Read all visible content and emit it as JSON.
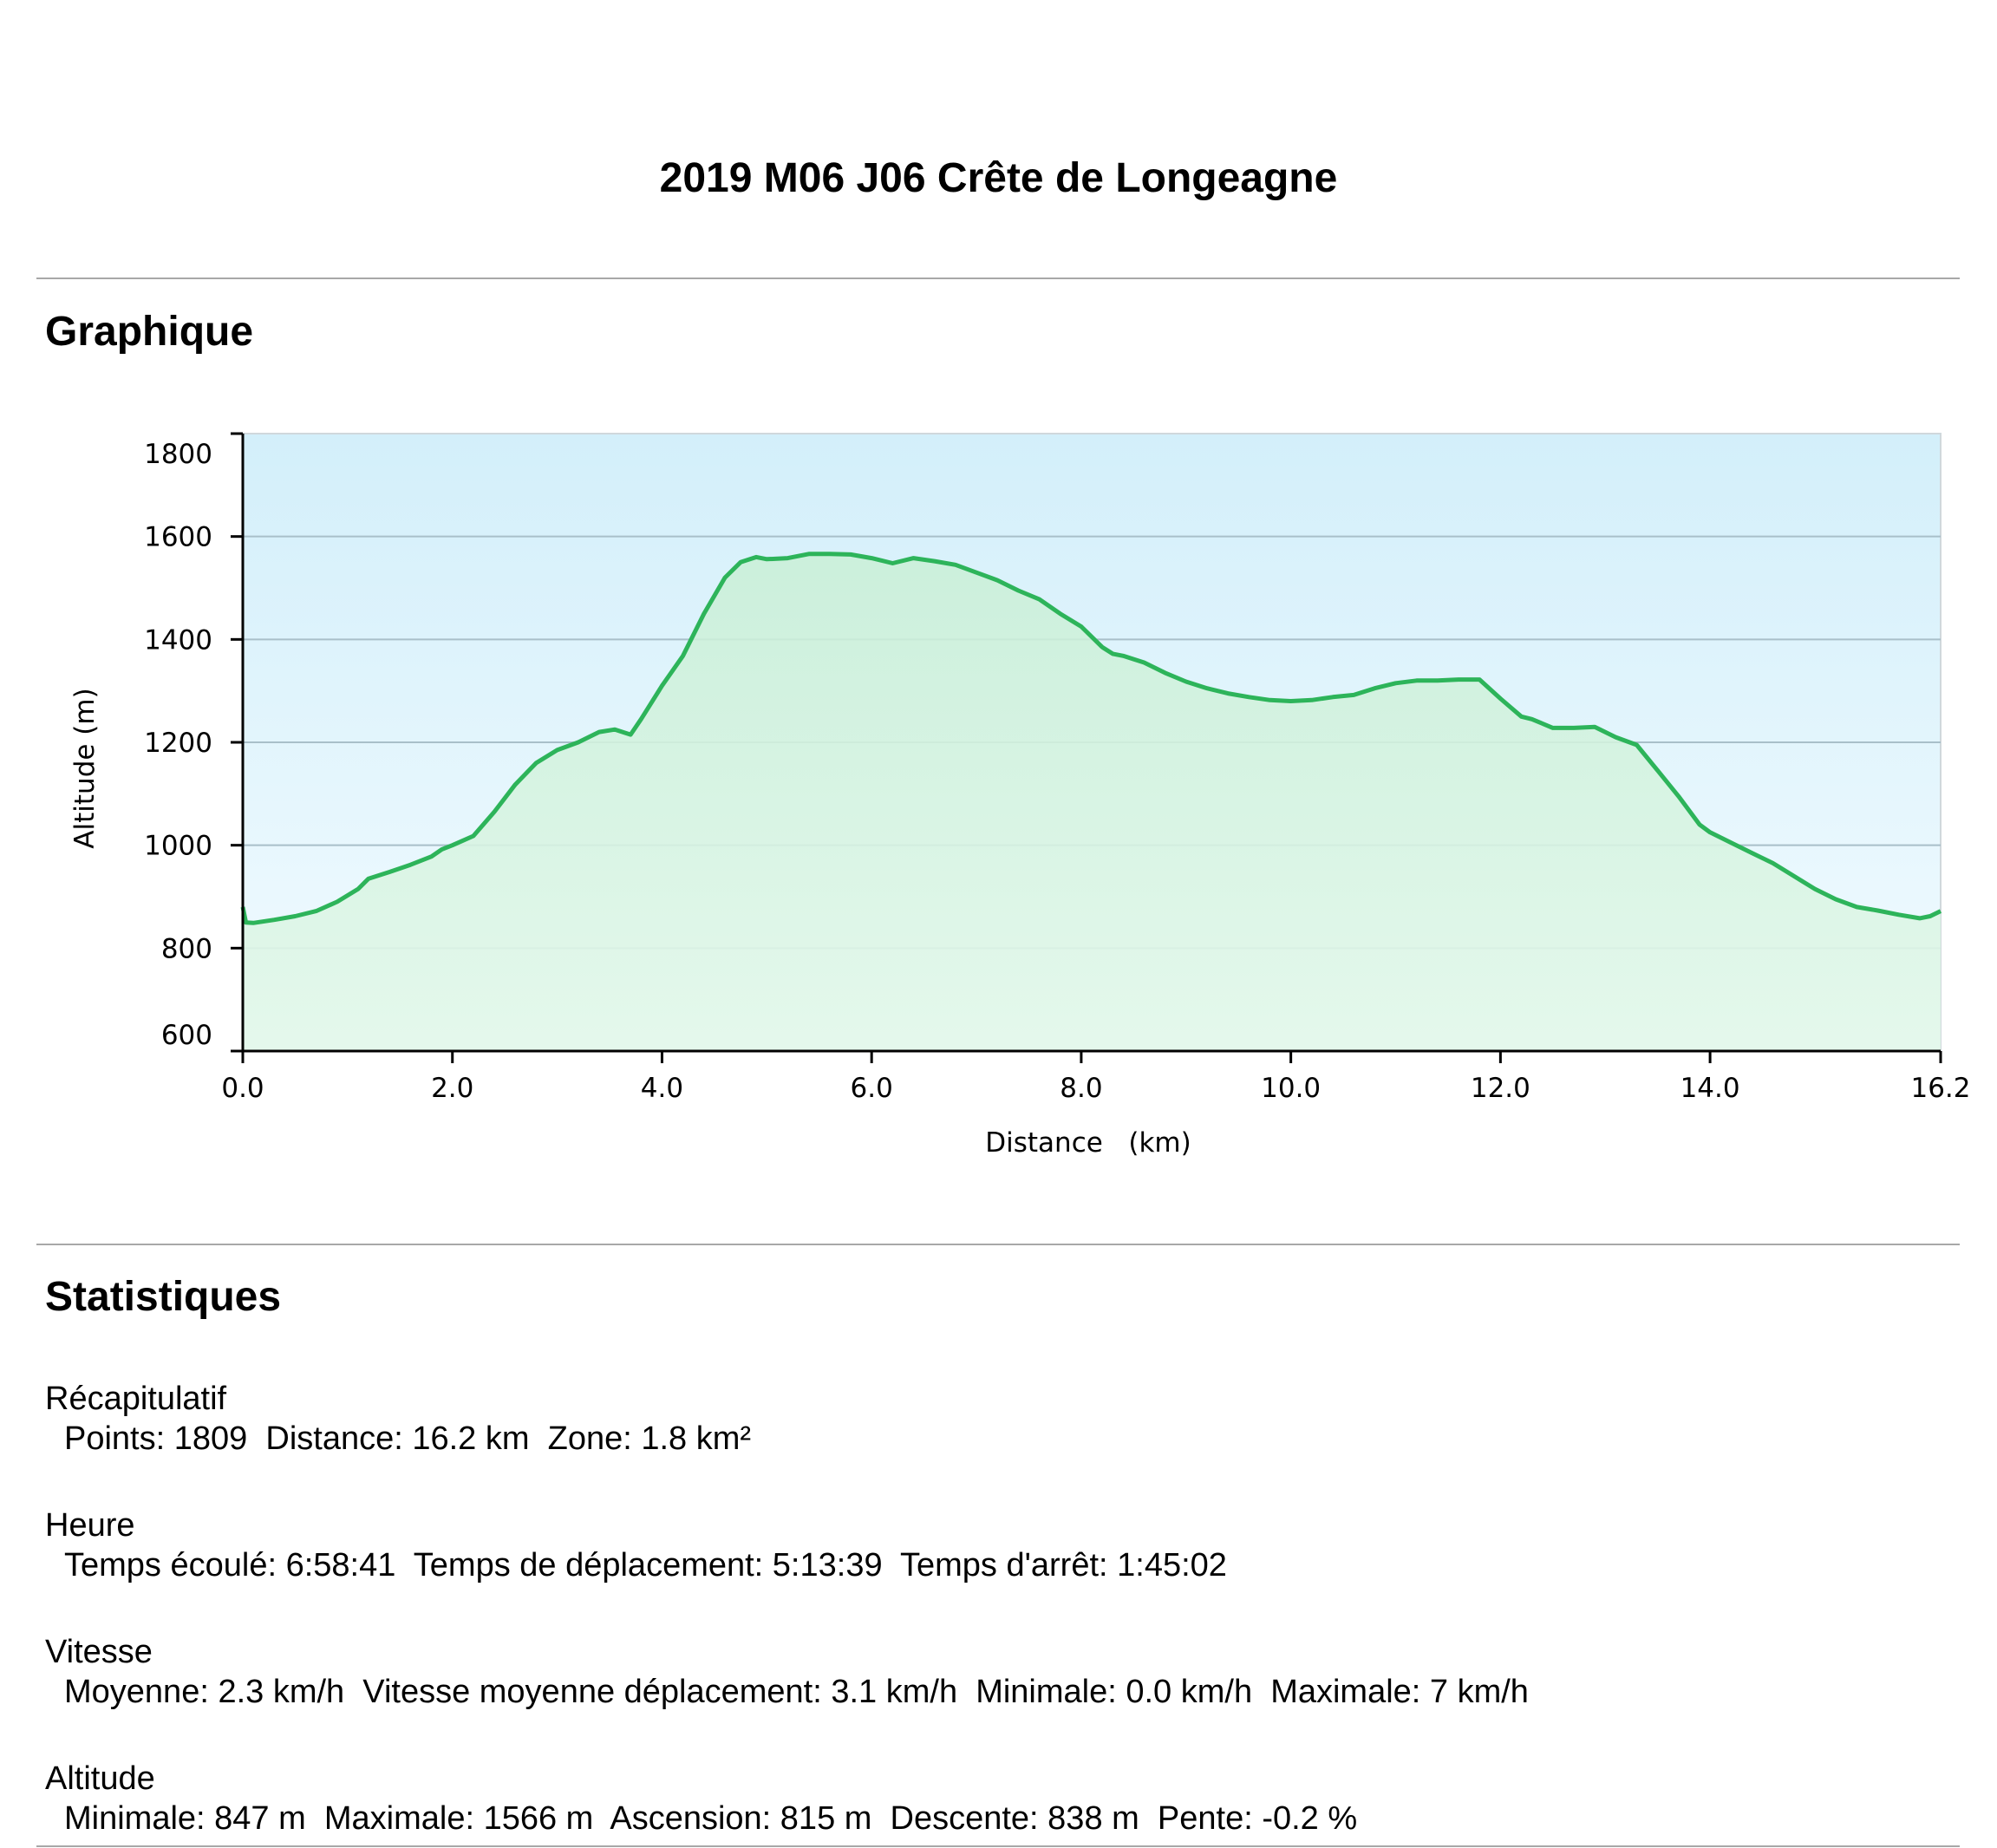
{
  "page": {
    "title": "2019 M06 J06 Crête de Longeagne",
    "section_chart": "Graphique",
    "section_stats": "Statistiques"
  },
  "stats": {
    "summary": {
      "heading": "Récapitulatif",
      "line": "Points: 1809  Distance: 16.2 km  Zone: 1.8 km²"
    },
    "time": {
      "heading": "Heure",
      "line": "Temps écoulé: 6:58:41  Temps de déplacement: 5:13:39  Temps d'arrêt: 1:45:02"
    },
    "speed": {
      "heading": "Vitesse",
      "line": "Moyenne: 2.3 km/h  Vitesse moyenne déplacement: 3.1 km/h  Minimale: 0.0 km/h  Maximale: 7 km/h"
    },
    "altitude": {
      "heading": "Altitude",
      "line": "Minimale: 847 m  Maximale: 1566 m  Ascension: 815 m  Descente: 838 m  Pente: -0.2 %"
    }
  },
  "chart_data": {
    "type": "area",
    "title": "",
    "xlabel": "Distance   (km)",
    "ylabel": "Altitude (m)",
    "xlim": [
      0,
      16.2
    ],
    "ylim": [
      600,
      1800
    ],
    "xticks": [
      "0.0",
      "2.0",
      "4.0",
      "6.0",
      "8.0",
      "10.0",
      "12.0",
      "14.0",
      "16.2"
    ],
    "yticks": [
      "600",
      "800",
      "1000",
      "1200",
      "1400",
      "1600",
      "1800"
    ],
    "grid": true,
    "colors": {
      "line": "#2db45a",
      "fill": "#c9efd6",
      "bg_top": "#d3effa",
      "bg_bottom": "#f2fbff",
      "grid": "#a9bfc9"
    },
    "series": [
      {
        "x": [
          0.0,
          0.03,
          0.1,
          0.3,
          0.5,
          0.7,
          0.9,
          1.1,
          1.2,
          1.4,
          1.6,
          1.8,
          1.9,
          2.0,
          2.2,
          2.4,
          2.6,
          2.8,
          3.0,
          3.2,
          3.4,
          3.55,
          3.7,
          3.8,
          4.0,
          4.2,
          4.4,
          4.6,
          4.75,
          4.9,
          5.0,
          5.2,
          5.4,
          5.6,
          5.8,
          6.0,
          6.2,
          6.4,
          6.6,
          6.8,
          7.0,
          7.2,
          7.4,
          7.6,
          7.8,
          8.0,
          8.2,
          8.3,
          8.4,
          8.6,
          8.8,
          9.0,
          9.2,
          9.4,
          9.6,
          9.8,
          10.0,
          10.2,
          10.4,
          10.6,
          10.8,
          11.0,
          11.2,
          11.4,
          11.6,
          11.8,
          12.0,
          12.2,
          12.3,
          12.5,
          12.7,
          12.9,
          13.1,
          13.3,
          13.5,
          13.7,
          13.9,
          14.0,
          14.2,
          14.4,
          14.6,
          14.8,
          15.0,
          15.2,
          15.4,
          15.6,
          15.8,
          16.0,
          16.1,
          16.2
        ],
        "y": [
          880,
          850,
          849,
          855,
          862,
          872,
          890,
          915,
          935,
          948,
          962,
          978,
          992,
          1000,
          1018,
          1065,
          1118,
          1160,
          1185,
          1200,
          1220,
          1225,
          1215,
          1245,
          1310,
          1368,
          1450,
          1520,
          1550,
          1560,
          1556,
          1558,
          1566,
          1566,
          1565,
          1558,
          1548,
          1558,
          1552,
          1545,
          1530,
          1515,
          1495,
          1478,
          1450,
          1425,
          1385,
          1372,
          1368,
          1355,
          1335,
          1318,
          1305,
          1295,
          1288,
          1282,
          1280,
          1282,
          1288,
          1292,
          1305,
          1315,
          1320,
          1320,
          1322,
          1322,
          1285,
          1250,
          1245,
          1228,
          1228,
          1230,
          1210,
          1195,
          1145,
          1095,
          1040,
          1025,
          1005,
          985,
          965,
          940,
          915,
          895,
          880,
          873,
          865,
          858,
          862,
          872
        ]
      }
    ]
  }
}
